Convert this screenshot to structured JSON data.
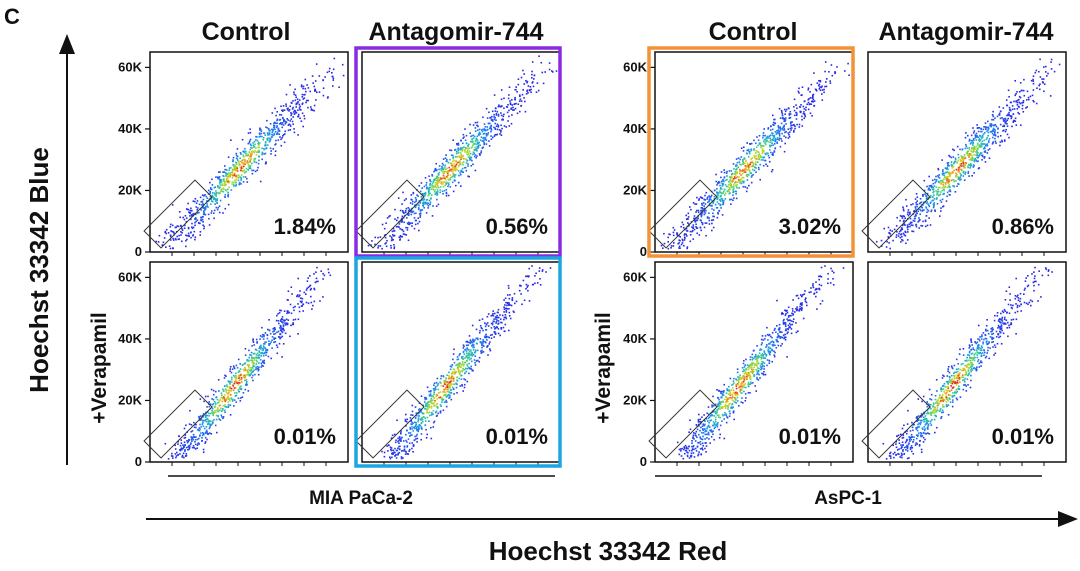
{
  "panel_letter": "C",
  "y_axis_label": "Hoechst 33342 Blue",
  "x_axis_label": "Hoechst 33342 Red",
  "row_labels": [
    "",
    "+Verapamil"
  ],
  "cell_lines": [
    {
      "name": "MIA PaCa-2",
      "conditions": [
        "Control",
        "Antagomir-744"
      ]
    },
    {
      "name": "AsPC-1",
      "conditions": [
        "Control",
        "Antagomir-744"
      ]
    }
  ],
  "highlight_colors": {
    "purple": "#8a2be2",
    "cyan": "#1ba6e0",
    "orange": "#f39237"
  },
  "chart_data": [
    {
      "type": "scatter",
      "cell_line": "MIA PaCa-2",
      "y_ticks": [
        "0",
        "20K",
        "40K",
        "60K"
      ],
      "ylim": [
        0,
        65000
      ],
      "panels": [
        {
          "condition": "Control",
          "treatment": "none",
          "side_population_percent": "1.84%"
        },
        {
          "condition": "Antagomir-744",
          "treatment": "none",
          "side_population_percent": "0.56%",
          "highlight": "#8a2be2"
        },
        {
          "condition": "Control",
          "treatment": "+Verapamil",
          "side_population_percent": "0.01%"
        },
        {
          "condition": "Antagomir-744",
          "treatment": "+Verapamil",
          "side_population_percent": "0.01%",
          "highlight": "#1ba6e0"
        }
      ]
    },
    {
      "type": "scatter",
      "cell_line": "AsPC-1",
      "y_ticks": [
        "0",
        "20K",
        "40K",
        "60K"
      ],
      "ylim": [
        0,
        65000
      ],
      "panels": [
        {
          "condition": "Control",
          "treatment": "none",
          "side_population_percent": "3.02%",
          "highlight": "#f39237"
        },
        {
          "condition": "Antagomir-744",
          "treatment": "none",
          "side_population_percent": "0.86%"
        },
        {
          "condition": "Control",
          "treatment": "+Verapamil",
          "side_population_percent": "0.01%"
        },
        {
          "condition": "Antagomir-744",
          "treatment": "+Verapamil",
          "side_population_percent": "0.01%"
        }
      ]
    }
  ]
}
